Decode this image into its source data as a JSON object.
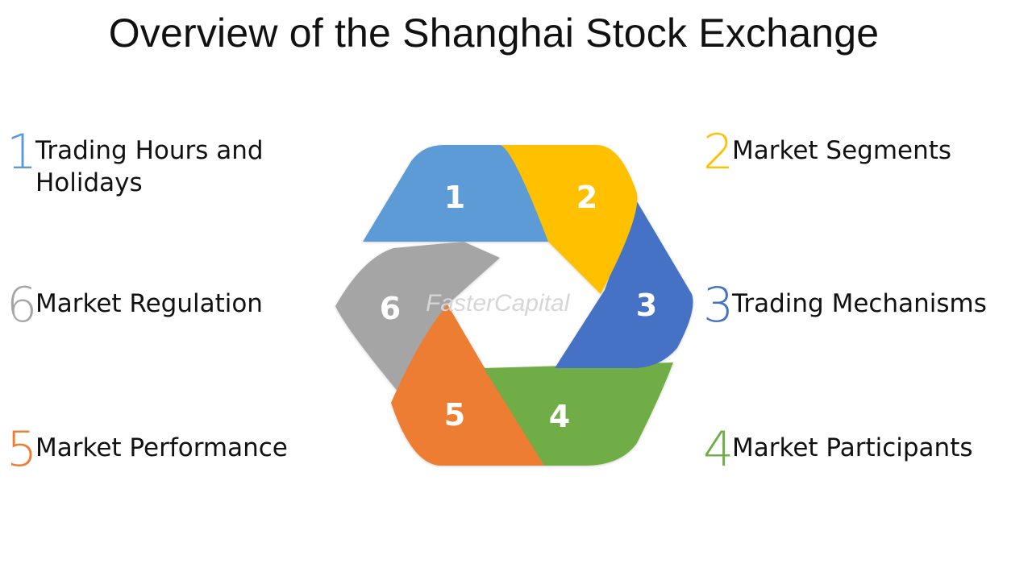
{
  "title": "Overview of the Shanghai Stock Exchange",
  "watermark": "FasterCapital",
  "items": [
    {
      "number": "1",
      "label_lines": [
        "Trading Hours and",
        "Holidays"
      ],
      "color": "#5B9BD5"
    },
    {
      "number": "2",
      "label_lines": [
        "Market Segments"
      ],
      "color": "#FFC000"
    },
    {
      "number": "3",
      "label_lines": [
        "Trading Mechanisms"
      ],
      "color": "#4472C4"
    },
    {
      "number": "4",
      "label_lines": [
        "Market Participants"
      ],
      "color": "#70AD47"
    },
    {
      "number": "5",
      "label_lines": [
        "Market Performance"
      ],
      "color": "#ED7D31"
    },
    {
      "number": "6",
      "label_lines": [
        "Market Regulation"
      ],
      "color": "#A5A5A5"
    }
  ]
}
